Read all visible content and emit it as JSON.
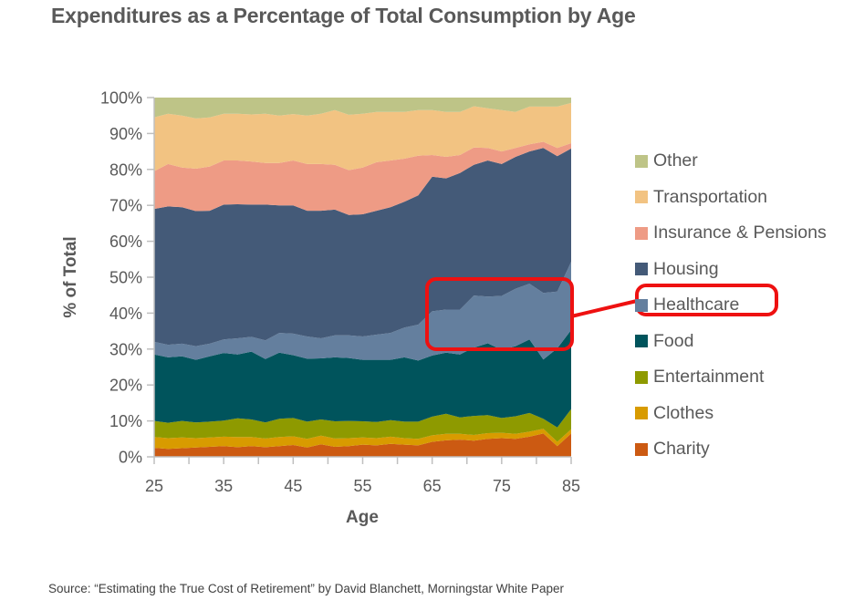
{
  "title": "Expenditures as a Percentage of Total Consumption by Age",
  "source": "Source: “Estimating the True Cost of Retirement” by David Blanchett, Morningstar White Paper",
  "highlight": {
    "series": "Healthcare",
    "age_range": [
      65,
      85
    ],
    "color": "#ee1111"
  },
  "chart_data": {
    "type": "area",
    "stacked": "percent",
    "title": "Expenditures as a Percentage of Total Consumption by Age",
    "xlabel": "Age",
    "ylabel": "% of Total",
    "xlim": [
      25,
      85
    ],
    "ylim": [
      0,
      100
    ],
    "x_ticks": [
      "25",
      "35",
      "45",
      "55",
      "65",
      "75",
      "85"
    ],
    "y_ticks": [
      "0%",
      "10%",
      "20%",
      "30%",
      "40%",
      "50%",
      "60%",
      "70%",
      "80%",
      "90%",
      "100%"
    ],
    "legend_position": "right",
    "x": [
      25,
      27,
      29,
      31,
      33,
      35,
      37,
      39,
      41,
      43,
      45,
      47,
      49,
      51,
      53,
      55,
      57,
      59,
      61,
      63,
      65,
      67,
      69,
      71,
      73,
      75,
      77,
      79,
      81,
      83,
      85
    ],
    "series": [
      {
        "name": "Charity",
        "color": "#cc5a12",
        "values": [
          2.5,
          2.2,
          2.4,
          2.6,
          2.8,
          3.0,
          2.7,
          3.0,
          2.7,
          3.0,
          3.3,
          2.6,
          3.5,
          2.8,
          3.0,
          3.4,
          3.2,
          3.6,
          3.4,
          3.2,
          4.2,
          4.6,
          4.8,
          4.5,
          5.0,
          5.2,
          5.0,
          5.6,
          6.5,
          3.0,
          6.5
        ]
      },
      {
        "name": "Clothes",
        "color": "#d89b00",
        "values": [
          3.0,
          3.0,
          3.0,
          2.6,
          2.6,
          2.6,
          2.8,
          2.5,
          2.4,
          2.5,
          2.4,
          2.4,
          2.4,
          2.3,
          2.2,
          2.0,
          2.0,
          2.0,
          1.8,
          1.8,
          1.8,
          1.8,
          1.6,
          1.6,
          1.6,
          1.5,
          1.4,
          1.4,
          1.3,
          1.2,
          1.2
        ]
      },
      {
        "name": "Entertainment",
        "color": "#8e9a00",
        "values": [
          4.5,
          4.3,
          4.6,
          4.4,
          4.4,
          4.5,
          5.2,
          4.9,
          4.5,
          5.1,
          5.1,
          4.8,
          4.5,
          4.8,
          4.8,
          4.5,
          4.5,
          4.6,
          4.6,
          4.8,
          5.2,
          5.6,
          4.6,
          5.3,
          5.0,
          4.1,
          4.9,
          5.2,
          2.8,
          4.0,
          5.6
        ]
      },
      {
        "name": "Food",
        "color": "#00545c",
        "values": [
          18.5,
          18.2,
          18.0,
          17.4,
          18.2,
          18.8,
          17.8,
          18.9,
          17.6,
          18.4,
          17.5,
          17.5,
          17.0,
          17.8,
          17.5,
          17.1,
          17.3,
          16.8,
          17.9,
          17.0,
          17.0,
          17.0,
          17.5,
          19.0,
          20.0,
          19.0,
          19.5,
          20.5,
          16.5,
          22.0,
          22.0
        ]
      },
      {
        "name": "Healthcare",
        "color": "#647f9e",
        "values": [
          3.5,
          3.5,
          3.5,
          3.8,
          3.5,
          3.8,
          4.5,
          4.1,
          5.2,
          5.5,
          6.0,
          6.2,
          5.6,
          6.1,
          6.3,
          6.5,
          7.0,
          7.5,
          8.3,
          10.0,
          12.3,
          12.0,
          12.5,
          14.5,
          13.0,
          15.0,
          16.0,
          15.5,
          18.5,
          15.8,
          19.0
        ]
      },
      {
        "name": "Housing",
        "color": "#445a78",
        "values": [
          37.0,
          38.5,
          38.0,
          37.6,
          37.0,
          37.5,
          37.3,
          36.8,
          37.8,
          35.5,
          35.7,
          35.0,
          35.5,
          35.0,
          33.5,
          34.0,
          34.5,
          35.0,
          35.0,
          36.0,
          37.5,
          36.5,
          38.0,
          36.4,
          37.9,
          36.7,
          36.7,
          36.8,
          40.4,
          37.7,
          31.5
        ]
      },
      {
        "name": "Insurance & Pensions",
        "color": "#ee9b85",
        "values": [
          10.5,
          11.8,
          11.0,
          11.8,
          12.3,
          12.3,
          12.2,
          12.0,
          11.6,
          11.8,
          12.5,
          13.0,
          13.0,
          12.5,
          12.5,
          13.0,
          13.5,
          13.0,
          12.0,
          11.0,
          6.0,
          6.0,
          5.0,
          4.8,
          3.5,
          3.5,
          2.5,
          2.0,
          1.7,
          2.3,
          1.5
        ]
      },
      {
        "name": "Transportation",
        "color": "#f2c382",
        "values": [
          15.0,
          14.0,
          14.5,
          14.0,
          13.7,
          13.0,
          13.0,
          13.1,
          13.7,
          13.2,
          12.9,
          13.5,
          14.0,
          15.2,
          15.4,
          15.0,
          14.0,
          13.5,
          13.0,
          12.7,
          12.5,
          12.5,
          12.0,
          11.5,
          11.0,
          11.5,
          10.0,
          10.5,
          9.8,
          11.5,
          11.2
        ]
      },
      {
        "name": "Other",
        "color": "#bec487",
        "values": [
          5.5,
          4.5,
          5.0,
          5.8,
          5.5,
          4.5,
          4.5,
          4.7,
          4.5,
          5.0,
          4.6,
          5.0,
          4.5,
          4.5,
          4.8,
          4.5,
          4.0,
          4.0,
          4.0,
          3.5,
          3.5,
          4.0,
          4.0,
          3.4,
          3.0,
          3.5,
          4.0,
          2.5,
          2.5,
          2.5,
          2.5
        ]
      }
    ]
  }
}
